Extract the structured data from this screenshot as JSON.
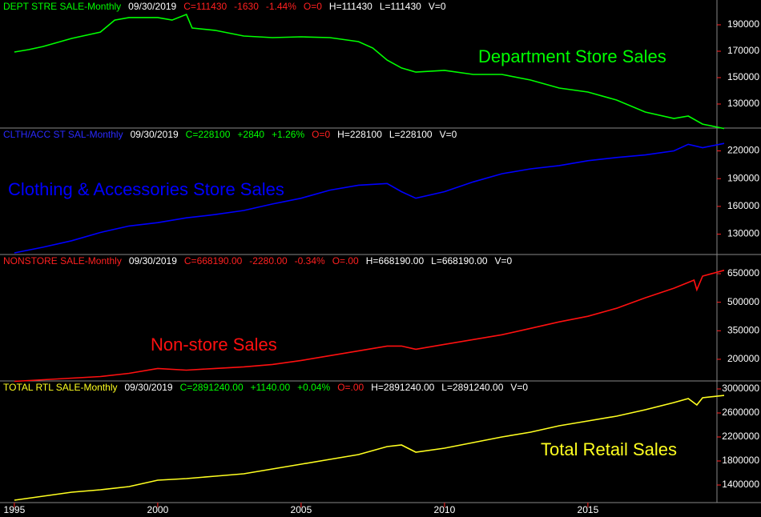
{
  "chart_data": [
    {
      "type": "line",
      "color": "#00ff00",
      "header": [
        {
          "text": "DEPT STRE SALE-Monthly",
          "color": "#00ff00"
        },
        {
          "text": "09/30/2019",
          "color": "#ffffff"
        },
        {
          "text": "C=111430",
          "color": "#ff2020"
        },
        {
          "text": "-1630",
          "color": "#ff2020"
        },
        {
          "text": "-1.44%",
          "color": "#ff2020"
        },
        {
          "text": "O=0",
          "color": "#ff2020"
        },
        {
          "text": "H=111430",
          "color": "#ffffff"
        },
        {
          "text": "L=111430",
          "color": "#ffffff"
        },
        {
          "text": "V=0",
          "color": "#ffffff"
        }
      ],
      "label": "Department Store Sales",
      "xlim": [
        1994.5,
        2019.5
      ],
      "x": [
        1995,
        1995.5,
        1996,
        1997,
        1998,
        1998.5,
        1999,
        2000,
        2000.5,
        2001,
        2001.2,
        2002,
        2003,
        2004,
        2005,
        2006,
        2007,
        2007.5,
        2008,
        2008.5,
        2009,
        2010,
        2011,
        2012,
        2013,
        2014,
        2015,
        2016,
        2017,
        2018,
        2018.5,
        2019,
        2019.75
      ],
      "values": [
        169400,
        171200,
        173600,
        179700,
        184500,
        193600,
        195500,
        195500,
        193600,
        197900,
        187600,
        185800,
        181500,
        180300,
        180900,
        180300,
        177300,
        172400,
        163300,
        157300,
        154200,
        155500,
        152400,
        152400,
        148200,
        142100,
        139100,
        133000,
        123900,
        119100,
        120900,
        114800,
        111430
      ],
      "ylim": [
        111800,
        208800
      ],
      "yticks": [
        130000,
        150000,
        170000,
        190000
      ]
    },
    {
      "type": "line",
      "color": "#0000ff",
      "header": [
        {
          "text": "CLTH/ACC ST SAL-Monthly",
          "color": "#2a2aff"
        },
        {
          "text": "09/30/2019",
          "color": "#ffffff"
        },
        {
          "text": "C=228100",
          "color": "#00ff00"
        },
        {
          "text": "+2840",
          "color": "#00ff00"
        },
        {
          "text": "+1.26%",
          "color": "#00ff00"
        },
        {
          "text": "O=0",
          "color": "#ff2020"
        },
        {
          "text": "H=228100",
          "color": "#ffffff"
        },
        {
          "text": "L=228100",
          "color": "#ffffff"
        },
        {
          "text": "V=0",
          "color": "#ffffff"
        }
      ],
      "label": "Clothing & Accessories Store Sales",
      "xlim": [
        1994.5,
        2019.5
      ],
      "x": [
        1995,
        1996,
        1997,
        1998,
        1999,
        2000,
        2001,
        2002,
        2003,
        2004,
        2005,
        2006,
        2007,
        2008,
        2008.5,
        2009,
        2010,
        2011,
        2012,
        2013,
        2014,
        2015,
        2016,
        2017,
        2018,
        2018.5,
        2019,
        2019.75
      ],
      "values": [
        109700,
        115900,
        122900,
        131800,
        138800,
        142400,
        147600,
        151200,
        155600,
        162600,
        168800,
        177600,
        182900,
        184700,
        175900,
        168800,
        175900,
        186500,
        195300,
        200600,
        204100,
        209400,
        212900,
        215600,
        220000,
        227100,
        223500,
        228100
      ],
      "ylim": [
        108000,
        244700
      ],
      "yticks": [
        130000,
        160000,
        190000,
        220000
      ]
    },
    {
      "type": "line",
      "color": "#ff1010",
      "header": [
        {
          "text": "NONSTORE SALE-Monthly",
          "color": "#ff2020"
        },
        {
          "text": "09/30/2019",
          "color": "#ffffff"
        },
        {
          "text": "C=668190.00",
          "color": "#ff2020"
        },
        {
          "text": "-2280.00",
          "color": "#ff2020"
        },
        {
          "text": "-0.34%",
          "color": "#ff2020"
        },
        {
          "text": "O=.00",
          "color": "#ff2020"
        },
        {
          "text": "H=668190.00",
          "color": "#ffffff"
        },
        {
          "text": "L=668190.00",
          "color": "#ffffff"
        },
        {
          "text": "V=0",
          "color": "#ffffff"
        }
      ],
      "label": "Non-store Sales",
      "xlim": [
        1994.5,
        2019.5
      ],
      "x": [
        1995,
        1996,
        1997,
        1998,
        1999,
        2000,
        2001,
        2002,
        2003,
        2004,
        2005,
        2006,
        2007,
        2008,
        2008.5,
        2009,
        2010,
        2011,
        2012,
        2013,
        2014,
        2015,
        2016,
        2017,
        2018,
        2018.7,
        2018.8,
        2019,
        2019.75
      ],
      "values": [
        83800,
        92300,
        100700,
        109200,
        126100,
        151700,
        143000,
        151700,
        160100,
        172500,
        193700,
        219000,
        244400,
        269700,
        269700,
        252800,
        278200,
        303500,
        328900,
        362700,
        396500,
        426100,
        468300,
        523200,
        573900,
        616200,
        565500,
        637300,
        668190
      ],
      "ylim": [
        86000,
        751000
      ],
      "yticks": [
        200000,
        350000,
        500000,
        650000
      ]
    },
    {
      "type": "line",
      "color": "#ffff20",
      "header": [
        {
          "text": "TOTAL RTL SALE-Monthly",
          "color": "#ffff20"
        },
        {
          "text": "09/30/2019",
          "color": "#ffffff"
        },
        {
          "text": "C=2891240.00",
          "color": "#00ff00"
        },
        {
          "text": "+1140.00",
          "color": "#00ff00"
        },
        {
          "text": "+0.04%",
          "color": "#00ff00"
        },
        {
          "text": "O=.00",
          "color": "#ff2020"
        },
        {
          "text": "H=2891240.00",
          "color": "#ffffff"
        },
        {
          "text": "L=2891240.00",
          "color": "#ffffff"
        },
        {
          "text": "V=0",
          "color": "#ffffff"
        }
      ],
      "label": "Total Retail Sales",
      "xlim": [
        1994.5,
        2019.5
      ],
      "xticks": [
        1995,
        2000,
        2005,
        2010,
        2015
      ],
      "x": [
        1995,
        1996,
        1997,
        1998,
        1999,
        2000,
        2001,
        2002,
        2003,
        2004,
        2005,
        2006,
        2007,
        2008,
        2008.5,
        2009,
        2010,
        2011,
        2012,
        2013,
        2014,
        2015,
        2016,
        2017,
        2018,
        2018.5,
        2018.8,
        2019,
        2019.75
      ],
      "values": [
        1146700,
        1213300,
        1280000,
        1320000,
        1373300,
        1480000,
        1506700,
        1546700,
        1586700,
        1666700,
        1746700,
        1826700,
        1906700,
        2040000,
        2066700,
        1946700,
        2013300,
        2106700,
        2200000,
        2280000,
        2386700,
        2466700,
        2546700,
        2653300,
        2773300,
        2840000,
        2733300,
        2853300,
        2891240
      ],
      "ylim": [
        1107000,
        3133000
      ],
      "yticks": [
        1400000,
        1800000,
        2200000,
        2600000,
        3000000
      ]
    }
  ]
}
